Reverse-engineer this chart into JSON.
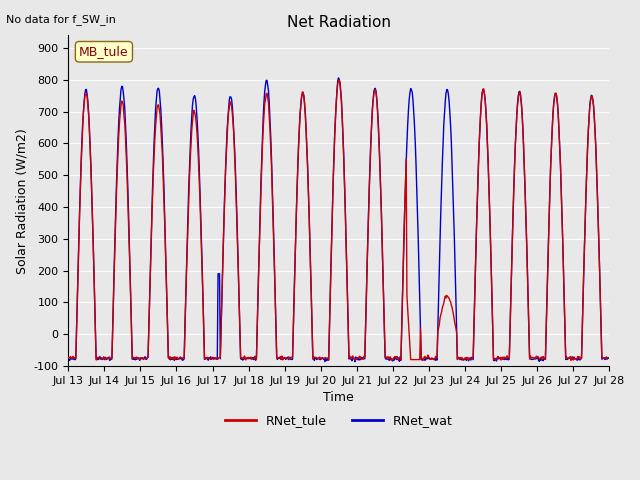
{
  "title": "Net Radiation",
  "xlabel": "Time",
  "ylabel": "Solar Radiation (W/m2)",
  "top_left_note": "No data for f_SW_in",
  "station_label": "MB_tule",
  "ylim": [
    -100,
    940
  ],
  "yticks": [
    -100,
    0,
    100,
    200,
    300,
    400,
    500,
    600,
    700,
    800,
    900
  ],
  "xtick_labels": [
    "Jul 13",
    "Jul 14",
    "Jul 15",
    "Jul 16",
    "Jul 17",
    "Jul 18",
    "Jul 19",
    "Jul 20",
    "Jul 21",
    "Jul 22",
    "Jul 23",
    "Jul 24",
    "Jul 25",
    "Jul 26",
    "Jul 27",
    "Jul 28"
  ],
  "color_tule": "#cc0000",
  "color_wat": "#0000cc",
  "legend_entries": [
    "RNet_tule",
    "RNet_wat"
  ],
  "background_color": "#e8e8e8",
  "axes_bg_color": "#e8e8e8",
  "grid_color": "#ffffff",
  "n_days": 15,
  "points_per_day": 48
}
